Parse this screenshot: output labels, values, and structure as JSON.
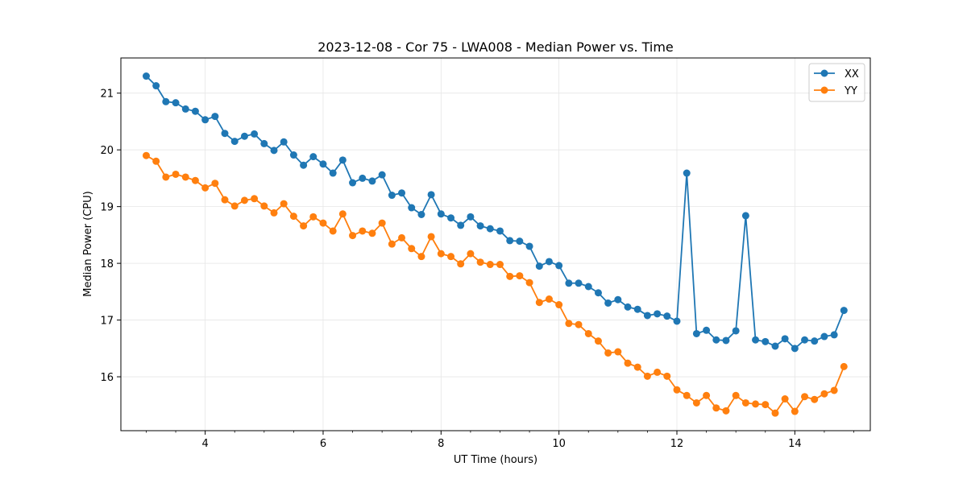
{
  "chart_data": {
    "type": "line",
    "title": "2023-12-08 - Cor 75 - LWA008 - Median Power vs. Time",
    "xlabel": "UT Time (hours)",
    "ylabel": "Median Power (CPU)",
    "xlim": [
      2.57,
      15.28
    ],
    "ylim": [
      15.05,
      21.62
    ],
    "xticks": [
      4,
      6,
      8,
      10,
      12,
      14
    ],
    "yticks": [
      16,
      17,
      18,
      19,
      20,
      21
    ],
    "grid": true,
    "legend_position": "top-right",
    "x": [
      3.0,
      3.167,
      3.333,
      3.5,
      3.667,
      3.833,
      4.0,
      4.167,
      4.333,
      4.5,
      4.667,
      4.833,
      5.0,
      5.167,
      5.333,
      5.5,
      5.667,
      5.833,
      6.0,
      6.167,
      6.333,
      6.5,
      6.667,
      6.833,
      7.0,
      7.167,
      7.333,
      7.5,
      7.667,
      7.833,
      8.0,
      8.167,
      8.333,
      8.5,
      8.667,
      8.833,
      9.0,
      9.167,
      9.333,
      9.5,
      9.667,
      9.833,
      10.0,
      10.167,
      10.333,
      10.5,
      10.667,
      10.833,
      11.0,
      11.167,
      11.333,
      11.5,
      11.667,
      11.833,
      12.0,
      12.167,
      12.333,
      12.5,
      12.667,
      12.833,
      13.0,
      13.167,
      13.333,
      13.5,
      13.667,
      13.833,
      14.0,
      14.167,
      14.333,
      14.5,
      14.667,
      14.833
    ],
    "series": [
      {
        "name": "XX",
        "color": "#1f77b4",
        "values": [
          21.3,
          21.13,
          20.85,
          20.83,
          20.72,
          20.68,
          20.53,
          20.59,
          20.29,
          20.15,
          20.24,
          20.28,
          20.11,
          19.99,
          20.14,
          19.91,
          19.73,
          19.88,
          19.75,
          19.59,
          19.82,
          19.42,
          19.5,
          19.45,
          19.56,
          19.2,
          19.24,
          18.98,
          18.86,
          19.21,
          18.87,
          18.8,
          18.67,
          18.82,
          18.66,
          18.61,
          18.57,
          18.4,
          18.39,
          18.3,
          17.95,
          18.03,
          17.96,
          17.65,
          17.65,
          17.59,
          17.48,
          17.3,
          17.36,
          17.23,
          17.19,
          17.08,
          17.11,
          17.07,
          16.98,
          19.59,
          16.76,
          16.82,
          16.65,
          16.64,
          16.81,
          18.84,
          16.65,
          16.62,
          16.54,
          16.67,
          16.5,
          16.65,
          16.63,
          16.71,
          16.74,
          17.17
        ]
      },
      {
        "name": "YY",
        "color": "#ff7f0e",
        "values": [
          19.9,
          19.8,
          19.52,
          19.57,
          19.52,
          19.46,
          19.33,
          19.41,
          19.12,
          19.01,
          19.11,
          19.14,
          19.01,
          18.89,
          19.05,
          18.83,
          18.66,
          18.82,
          18.71,
          18.57,
          18.87,
          18.49,
          18.57,
          18.53,
          18.71,
          18.34,
          18.45,
          18.26,
          18.12,
          18.47,
          18.17,
          18.12,
          17.99,
          18.17,
          18.02,
          17.98,
          17.98,
          17.77,
          17.78,
          17.66,
          17.31,
          17.37,
          17.27,
          16.94,
          16.92,
          16.76,
          16.63,
          16.42,
          16.44,
          16.24,
          16.17,
          16.01,
          16.08,
          16.01,
          15.77,
          15.67,
          15.54,
          15.67,
          15.45,
          15.4,
          15.67,
          15.54,
          15.52,
          15.51,
          15.36,
          15.61,
          15.39,
          15.65,
          15.6,
          15.7,
          15.76,
          16.18
        ]
      }
    ]
  }
}
